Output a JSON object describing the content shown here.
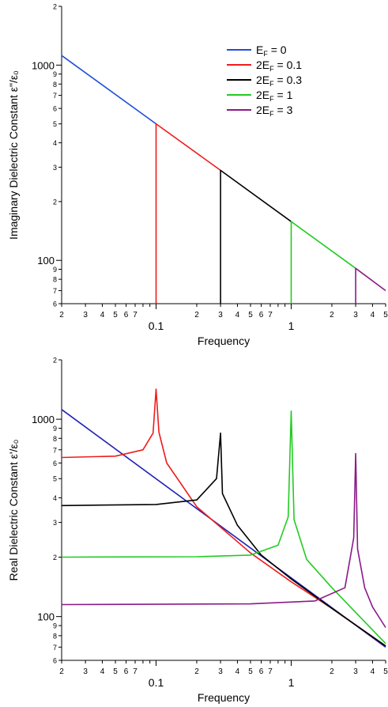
{
  "chart_data": [
    {
      "type": "line",
      "panel": "top",
      "xlabel": "Frequency",
      "ylabel": "Imaginary Dielectric Constant",
      "ylabel_symbol": "ε\"/ε₀",
      "x_scale": "log",
      "y_scale": "log",
      "xlim": [
        0.02,
        5
      ],
      "ylim": [
        60,
        2000
      ],
      "x_major_ticks": [
        "0.1",
        "1"
      ],
      "x_minor_ticks": [
        "2",
        "3",
        "4",
        "5",
        "6",
        "7",
        "2",
        "3",
        "4",
        "5",
        "6",
        "7",
        "2",
        "3",
        "4",
        "5"
      ],
      "y_major_ticks": [
        "100",
        "1000"
      ],
      "y_minor_ticks": [
        "6",
        "7",
        "8",
        "9",
        "2",
        "3",
        "4",
        "5",
        "6",
        "7",
        "8",
        "9",
        "2"
      ],
      "legend_position": "top-right",
      "series": [
        {
          "name": "E_F = 0",
          "color": "#1f4fd8",
          "x": [
            0.02,
            0.1
          ],
          "y": [
            1120,
            500
          ]
        },
        {
          "name": "2E_F = 0.1",
          "color": "#ee1c1c",
          "x": [
            0.1,
            0.1,
            0.3
          ],
          "y": [
            60,
            500,
            289
          ]
        },
        {
          "name": "2E_F = 0.3",
          "color": "#000000",
          "x": [
            0.3,
            0.3,
            1
          ],
          "y": [
            60,
            289,
            158
          ]
        },
        {
          "name": "2E_F = 1",
          "color": "#22cc22",
          "x": [
            1,
            1,
            3
          ],
          "y": [
            60,
            158,
            91
          ]
        },
        {
          "name": "2E_F = 3",
          "color": "#8b1a89",
          "x": [
            3,
            3,
            5
          ],
          "y": [
            60,
            91,
            70
          ]
        }
      ]
    },
    {
      "type": "line",
      "panel": "bottom",
      "xlabel": "Frequency",
      "ylabel": "Real Dielectric Constant",
      "ylabel_symbol": "ε'/ε₀",
      "x_scale": "log",
      "y_scale": "log",
      "xlim": [
        0.02,
        5
      ],
      "ylim": [
        60,
        2000
      ],
      "x_major_ticks": [
        "0.1",
        "1"
      ],
      "x_minor_ticks": [
        "2",
        "3",
        "4",
        "5",
        "6",
        "7",
        "2",
        "3",
        "4",
        "5",
        "6",
        "7",
        "2",
        "3",
        "4",
        "5"
      ],
      "y_major_ticks": [
        "100",
        "1000"
      ],
      "y_minor_ticks": [
        "6",
        "7",
        "8",
        "9",
        "2",
        "3",
        "4",
        "5",
        "6",
        "7",
        "8",
        "9",
        "2"
      ],
      "series": [
        {
          "name": "E_F = 0",
          "color": "#1f22b8",
          "x": [
            0.02,
            5
          ],
          "y": [
            1120,
            70
          ]
        },
        {
          "name": "2E_F = 0.1",
          "color": "#ee1c1c",
          "x": [
            0.02,
            0.05,
            0.08,
            0.095,
            0.1,
            0.105,
            0.12,
            0.2,
            0.5,
            1,
            2,
            5
          ],
          "y": [
            640,
            650,
            700,
            850,
            1420,
            860,
            600,
            360,
            210,
            150,
            110,
            71
          ]
        },
        {
          "name": "2E_F = 0.3",
          "color": "#000000",
          "x": [
            0.02,
            0.1,
            0.2,
            0.28,
            0.3,
            0.31,
            0.4,
            0.6,
            1,
            2,
            5
          ],
          "y": [
            365,
            370,
            390,
            500,
            850,
            420,
            290,
            205,
            155,
            110,
            71
          ]
        },
        {
          "name": "2E_F = 1",
          "color": "#22cc22",
          "x": [
            0.02,
            0.2,
            0.5,
            0.8,
            0.95,
            1,
            1.05,
            1.3,
            2,
            3,
            5
          ],
          "y": [
            200,
            201,
            205,
            230,
            320,
            1100,
            310,
            195,
            140,
            105,
            73
          ]
        },
        {
          "name": "2E_F = 3",
          "color": "#8b1a89",
          "x": [
            0.02,
            0.5,
            1.5,
            2.5,
            2.9,
            3,
            3.1,
            3.5,
            4,
            5
          ],
          "y": [
            115,
            116,
            120,
            140,
            250,
            670,
            220,
            140,
            112,
            88
          ]
        }
      ]
    }
  ],
  "legend": {
    "items": [
      {
        "label": "E",
        "sub": "F",
        "rest": " = 0",
        "color": "#1f4fd8"
      },
      {
        "label": "2E",
        "sub": "F",
        "rest": " = 0.1",
        "color": "#ee1c1c"
      },
      {
        "label": "2E",
        "sub": "F",
        "rest": " = 0.3",
        "color": "#000000"
      },
      {
        "label": "2E",
        "sub": "F",
        "rest": " = 1",
        "color": "#22cc22"
      },
      {
        "label": "2E",
        "sub": "F",
        "rest": " = 3",
        "color": "#8b1a89"
      }
    ]
  }
}
